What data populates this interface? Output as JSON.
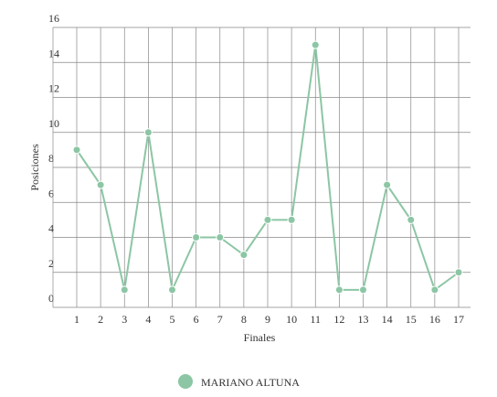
{
  "chart_data": {
    "type": "line",
    "categories": [
      "1",
      "2",
      "3",
      "4",
      "5",
      "6",
      "7",
      "8",
      "9",
      "10",
      "11",
      "12",
      "13",
      "14",
      "15",
      "16",
      "17"
    ],
    "series": [
      {
        "name": "MARIANO ALTUNA",
        "color": "#8cc6a4",
        "values": [
          9,
          7,
          1,
          10,
          1,
          4,
          4,
          3,
          5,
          5,
          15,
          1,
          1,
          7,
          5,
          1,
          2
        ]
      }
    ],
    "xlabel": "Finales",
    "ylabel": "Posiciones",
    "ylim": [
      0,
      16
    ],
    "yticks": [
      0,
      2,
      4,
      6,
      8,
      10,
      12,
      14,
      16
    ],
    "grid": true,
    "legend": "bottom"
  }
}
